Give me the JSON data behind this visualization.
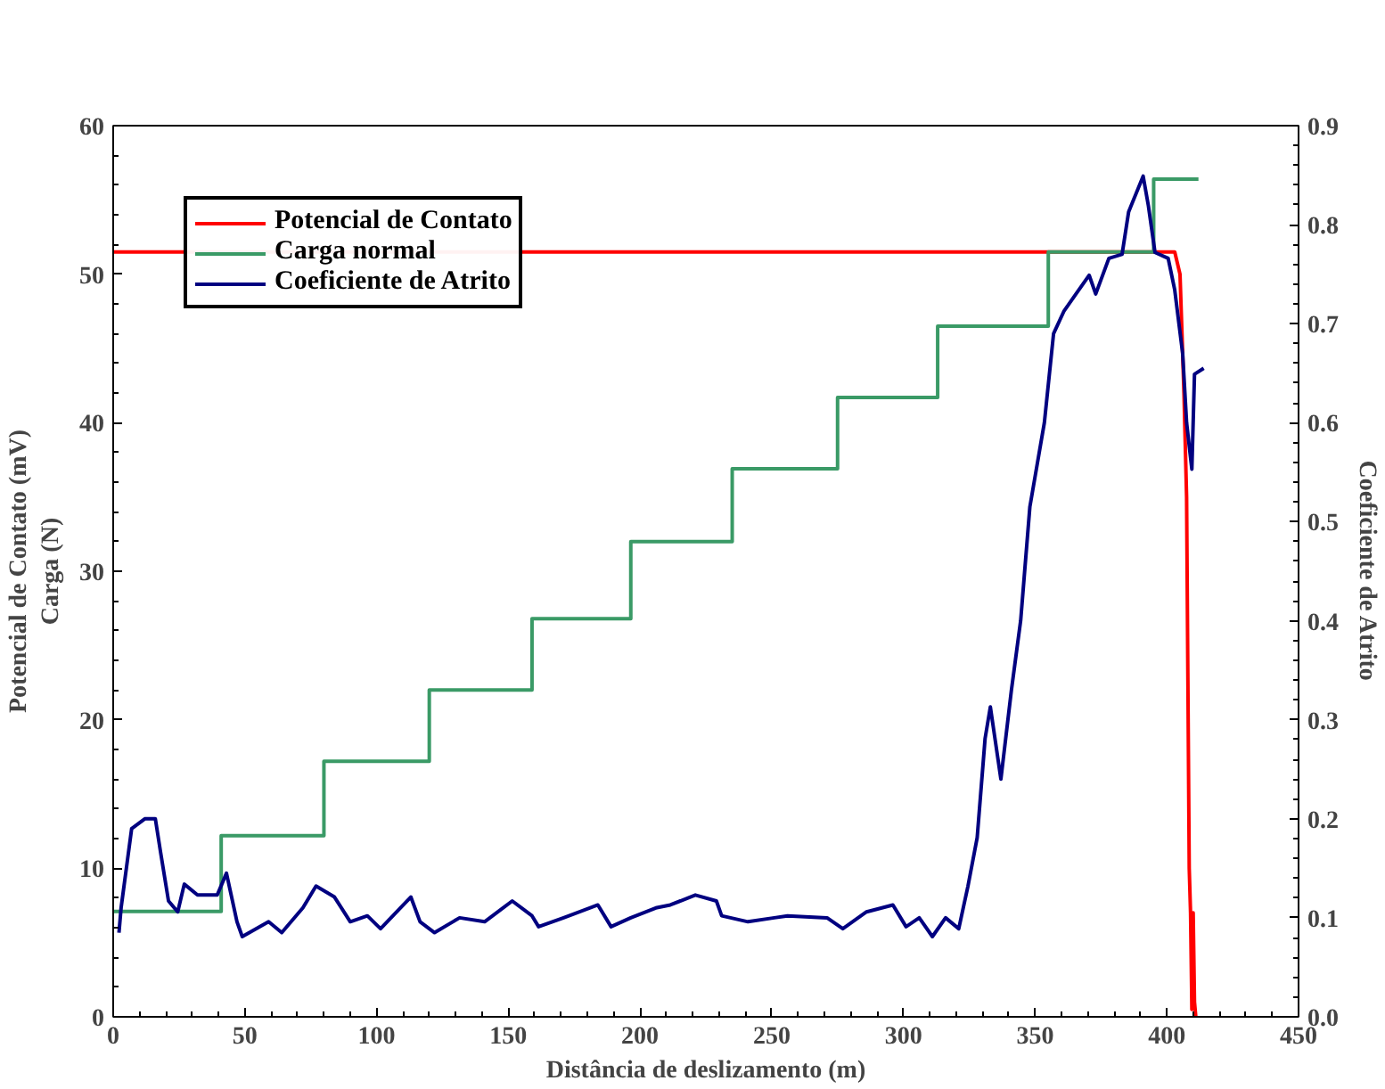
{
  "chart_data": {
    "type": "line",
    "xlabel": "Distância de deslizamento (m)",
    "ylabel": "Potencial de Contato (mV)\nCarga (N)",
    "y2label": "Coeficiente de Atrito",
    "xlim": [
      0,
      450
    ],
    "xticks": [
      0,
      50,
      100,
      150,
      200,
      250,
      300,
      350,
      400,
      450
    ],
    "ylim": [
      0,
      60
    ],
    "yticks": [
      0,
      10,
      20,
      30,
      40,
      50,
      60
    ],
    "y2lim": [
      0,
      0.9
    ],
    "y2ticks": [
      {
        "value": 0,
        "label": "0.0"
      },
      0.1,
      0.2,
      0.3,
      0.4,
      0.5,
      0.6,
      0.7,
      0.8,
      0.9
    ],
    "grid": false,
    "legend": "top left",
    "series": [
      {
        "name": "Potencial de Contato",
        "color": "#ff0000",
        "x": [
          0,
          403,
          405,
          406.5,
          407.5,
          408.5,
          409,
          409.5,
          410,
          410.5,
          411
        ],
        "values": [
          51.5,
          51.5,
          50,
          42,
          35,
          10,
          7,
          0.5,
          7,
          1,
          0
        ]
      },
      {
        "name": "Carga normal",
        "color": "#3a9a66",
        "type": "step",
        "x": [
          0,
          41,
          80,
          120,
          159,
          196.5,
          235,
          275,
          313,
          355,
          395,
          412
        ],
        "values": [
          7.1,
          12.2,
          17.2,
          22.0,
          26.8,
          32.0,
          36.9,
          41.7,
          46.5,
          51.5,
          56.4,
          56.4
        ]
      },
      {
        "name": "Coeficiente de Atrito",
        "color": "#000080",
        "axis": "y2",
        "x": [
          2.2,
          3,
          7,
          12,
          16,
          18,
          21,
          24.5,
          27,
          32,
          39.5,
          43,
          47,
          49,
          59,
          64,
          72,
          77,
          84,
          90,
          96.5,
          101.5,
          113,
          116.5,
          122,
          131.5,
          141,
          151.5,
          159,
          161.5,
          171,
          184,
          189,
          196.5,
          206,
          211.5,
          221,
          229,
          231,
          241,
          251,
          256,
          271,
          277,
          286,
          296,
          301,
          306,
          311,
          316,
          321,
          324.5,
          328,
          331,
          333,
          337,
          341,
          344.5,
          348,
          353.5,
          357,
          361,
          365.5,
          370.5,
          373,
          378,
          383,
          385.5,
          391,
          393,
          395.5,
          400.5,
          403,
          406,
          407.5,
          409.5,
          410.5,
          414
        ],
        "values": [
          0.085,
          0.11,
          0.19,
          0.2,
          0.2,
          0.166,
          0.117,
          0.106,
          0.134,
          0.123,
          0.123,
          0.145,
          0.096,
          0.081,
          0.096,
          0.085,
          0.11,
          0.132,
          0.121,
          0.096,
          0.102,
          0.089,
          0.121,
          0.096,
          0.085,
          0.1,
          0.096,
          0.117,
          0.102,
          0.091,
          0.1,
          0.113,
          0.091,
          0.1,
          0.11,
          0.113,
          0.123,
          0.117,
          0.102,
          0.096,
          0.1,
          0.102,
          0.1,
          0.089,
          0.106,
          0.113,
          0.091,
          0.1,
          0.081,
          0.1,
          0.089,
          0.132,
          0.181,
          0.281,
          0.313,
          0.24,
          0.33,
          0.4,
          0.515,
          0.6,
          0.69,
          0.713,
          0.73,
          0.749,
          0.73,
          0.766,
          0.77,
          0.813,
          0.849,
          0.819,
          0.772,
          0.766,
          0.734,
          0.67,
          0.6,
          0.553,
          0.649,
          0.655
        ]
      }
    ]
  }
}
